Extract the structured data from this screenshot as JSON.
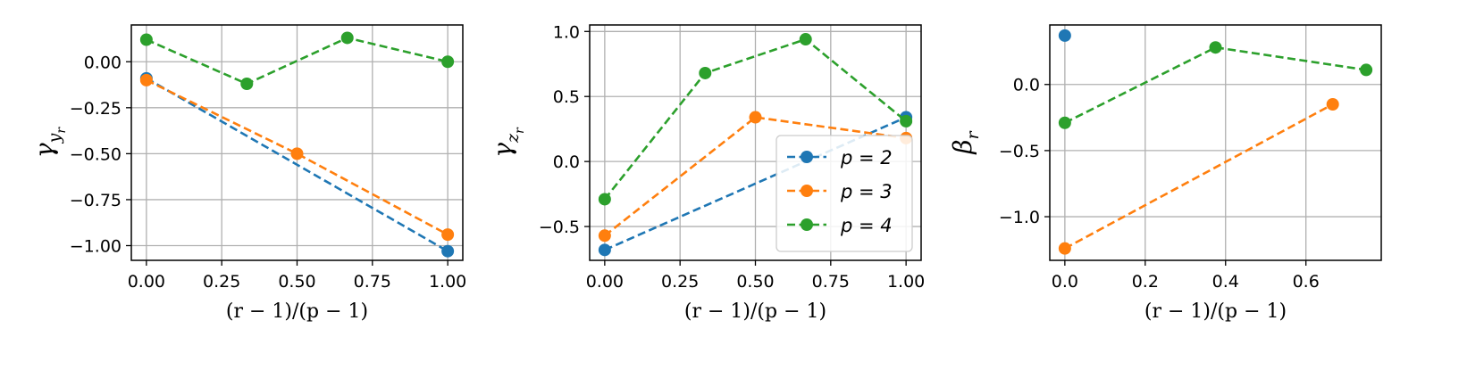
{
  "colors": {
    "p2": "#1f77b4",
    "p3": "#ff7f0e",
    "p4": "#2ca02c",
    "grid": "#b0b0b0",
    "axis": "#000000"
  },
  "chart_data": [
    {
      "type": "line",
      "xlabel": "(r − 1)/(p − 1)",
      "ylabel": {
        "base": "γ",
        "sub": "y",
        "subsub": "r"
      },
      "xlim": [
        -0.05,
        1.05
      ],
      "ylim": [
        -1.08,
        0.2
      ],
      "xticks": [
        0,
        0.25,
        0.5,
        0.75,
        1.0
      ],
      "xtick_labels": [
        "0.00",
        "0.25",
        "0.50",
        "0.75",
        "1.00"
      ],
      "yticks": [
        -1.0,
        -0.75,
        -0.5,
        -0.25,
        0.0
      ],
      "ytick_labels": [
        "−1.00",
        "−0.75",
        "−0.50",
        "−0.25",
        "0.00"
      ],
      "grid": true,
      "series": [
        {
          "name": "p = 2",
          "color_key": "p2",
          "x": [
            0,
            1
          ],
          "y": [
            -0.09,
            -1.03
          ]
        },
        {
          "name": "p = 3",
          "color_key": "p3",
          "x": [
            0,
            0.5,
            1
          ],
          "y": [
            -0.1,
            -0.5,
            -0.94
          ]
        },
        {
          "name": "p = 4",
          "color_key": "p4",
          "x": [
            0,
            0.3333,
            0.6667,
            1
          ],
          "y": [
            0.12,
            -0.12,
            0.13,
            0.0
          ]
        }
      ]
    },
    {
      "type": "line",
      "xlabel": "(r − 1)/(p − 1)",
      "ylabel": {
        "base": "γ",
        "sub": "z",
        "subsub": "r"
      },
      "xlim": [
        -0.05,
        1.05
      ],
      "ylim": [
        -0.76,
        1.05
      ],
      "xticks": [
        0,
        0.25,
        0.5,
        0.75,
        1.0
      ],
      "xtick_labels": [
        "0.00",
        "0.25",
        "0.50",
        "0.75",
        "1.00"
      ],
      "yticks": [
        -0.5,
        0.0,
        0.5,
        1.0
      ],
      "ytick_labels": [
        "−0.5",
        "0.0",
        "0.5",
        "1.0"
      ],
      "grid": true,
      "legend": {
        "placement": "lower-right",
        "entries": [
          {
            "label": "p = 2",
            "color_key": "p2"
          },
          {
            "label": "p = 3",
            "color_key": "p3"
          },
          {
            "label": "p = 4",
            "color_key": "p4"
          }
        ]
      },
      "series": [
        {
          "name": "p = 2",
          "color_key": "p2",
          "x": [
            0,
            1
          ],
          "y": [
            -0.68,
            0.34
          ]
        },
        {
          "name": "p = 3",
          "color_key": "p3",
          "x": [
            0,
            0.5,
            1
          ],
          "y": [
            -0.57,
            0.34,
            0.18
          ]
        },
        {
          "name": "p = 4",
          "color_key": "p4",
          "x": [
            0,
            0.3333,
            0.6667,
            1
          ],
          "y": [
            -0.29,
            0.68,
            0.94,
            0.31
          ]
        }
      ]
    },
    {
      "type": "line",
      "xlabel": "(r − 1)/(p − 1)",
      "ylabel": {
        "base": "β",
        "sub": "r",
        "subsub": ""
      },
      "xlim": [
        -0.0375,
        0.7875
      ],
      "ylim": [
        -1.33,
        0.45
      ],
      "xticks": [
        0,
        0.2,
        0.4,
        0.6
      ],
      "xtick_labels": [
        "0.0",
        "0.2",
        "0.4",
        "0.6"
      ],
      "yticks": [
        -1.0,
        -0.5,
        0.0
      ],
      "ytick_labels": [
        "−1.0",
        "−0.5",
        "0.0"
      ],
      "grid": true,
      "series": [
        {
          "name": "p = 2",
          "color_key": "p2",
          "x": [
            0
          ],
          "y": [
            0.37
          ]
        },
        {
          "name": "p = 3",
          "color_key": "p3",
          "x": [
            0,
            0.6667
          ],
          "y": [
            -1.24,
            -0.15
          ]
        },
        {
          "name": "p = 4",
          "color_key": "p4",
          "x": [
            0,
            0.375,
            0.75
          ],
          "y": [
            -0.29,
            0.28,
            0.11
          ]
        }
      ]
    }
  ]
}
